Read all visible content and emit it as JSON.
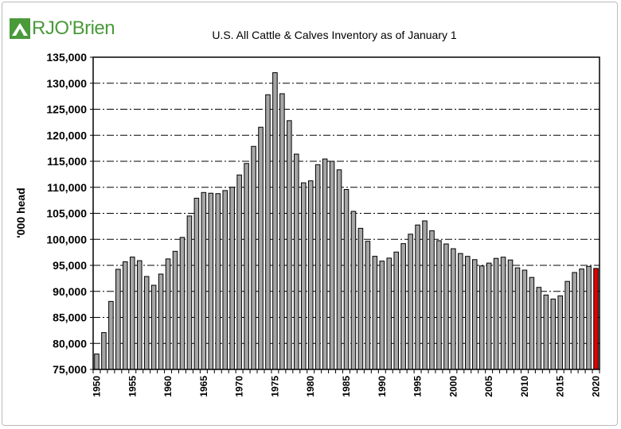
{
  "logo": {
    "text": "RJO'Brien",
    "color": "#4a9a3a"
  },
  "chart_data": {
    "type": "bar",
    "title": "U.S. All Cattle & Calves Inventory as of January 1",
    "xlabel": "",
    "ylabel": "'000 head",
    "ylim": [
      75000,
      135000
    ],
    "ytick_step": 5000,
    "ytick_labels": [
      "75,000",
      "80,000",
      "85,000",
      "90,000",
      "95,000",
      "100,000",
      "105,000",
      "110,000",
      "115,000",
      "120,000",
      "125,000",
      "130,000",
      "135,000"
    ],
    "xtick_labels": [
      "1950",
      "1955",
      "1960",
      "1965",
      "1970",
      "1975",
      "1980",
      "1985",
      "1990",
      "1995",
      "2000",
      "2005",
      "2010",
      "2015",
      "2020"
    ],
    "grid": "horizontal dash-dot",
    "bar_color": "#a6a6a6",
    "highlight_color": "#e00000",
    "highlight_category": "2020",
    "categories": [
      "1950",
      "1951",
      "1952",
      "1953",
      "1954",
      "1955",
      "1956",
      "1957",
      "1958",
      "1959",
      "1960",
      "1961",
      "1962",
      "1963",
      "1964",
      "1965",
      "1966",
      "1967",
      "1968",
      "1969",
      "1970",
      "1971",
      "1972",
      "1973",
      "1974",
      "1975",
      "1976",
      "1977",
      "1978",
      "1979",
      "1980",
      "1981",
      "1982",
      "1983",
      "1984",
      "1985",
      "1986",
      "1987",
      "1988",
      "1989",
      "1990",
      "1991",
      "1992",
      "1993",
      "1994",
      "1995",
      "1996",
      "1997",
      "1998",
      "1999",
      "2000",
      "2001",
      "2002",
      "2003",
      "2004",
      "2005",
      "2006",
      "2007",
      "2008",
      "2009",
      "2010",
      "2011",
      "2012",
      "2013",
      "2014",
      "2015",
      "2016",
      "2017",
      "2018",
      "2019",
      "2020"
    ],
    "values": [
      77963,
      82083,
      88072,
      94241,
      95679,
      96592,
      95900,
      92860,
      91176,
      93322,
      96236,
      97700,
      100369,
      104488,
      107903,
      109000,
      108862,
      108783,
      109371,
      110015,
      112369,
      114578,
      117862,
      121539,
      127788,
      132028,
      127980,
      122810,
      116375,
      110864,
      111242,
      114351,
      115444,
      115001,
      113360,
      109582,
      105378,
      102118,
      99622,
      96740,
      95816,
      96393,
      97556,
      99176,
      100988,
      102755,
      103548,
      101656,
      99744,
      99115,
      98199,
      97277,
      96723,
      96100,
      94888,
      95438,
      96342,
      96573,
      96035,
      94521,
      94081,
      92682,
      90769,
      89300,
      88526,
      89143,
      91918,
      93625,
      94298,
      94805,
      94413
    ]
  }
}
